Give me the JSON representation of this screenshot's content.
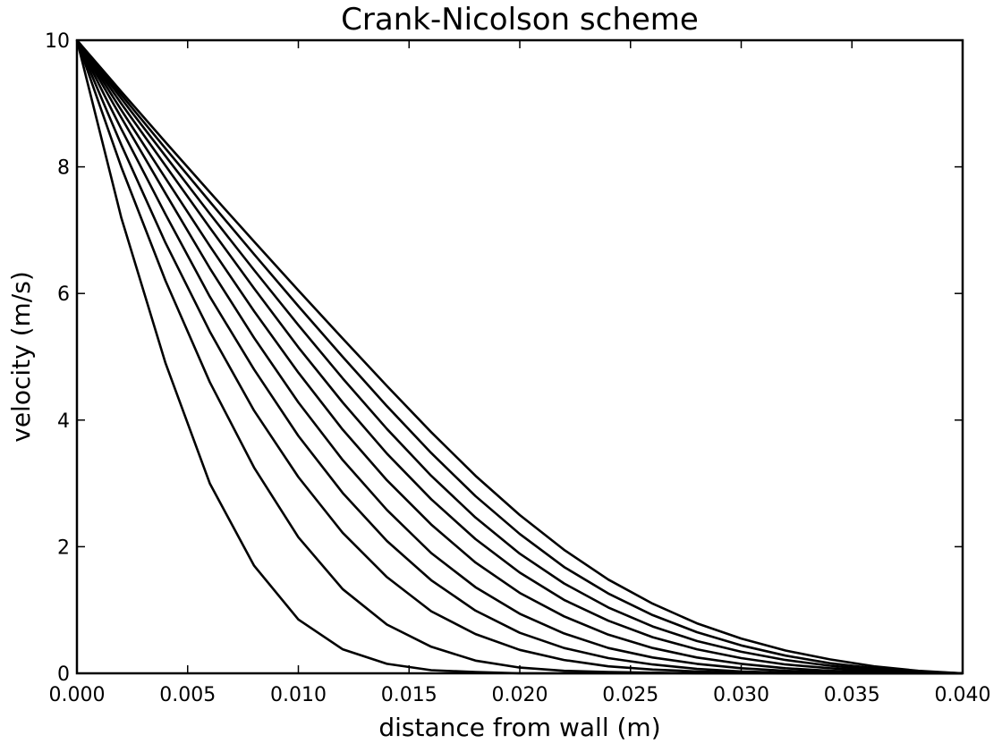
{
  "chart_data": {
    "type": "line",
    "title": "Crank-Nicolson scheme",
    "xlabel": "distance from wall (m)",
    "ylabel": "velocity (m/s)",
    "xlim": [
      0.0,
      0.04
    ],
    "ylim": [
      0,
      10
    ],
    "xticks": [
      "0.000",
      "0.005",
      "0.010",
      "0.015",
      "0.020",
      "0.025",
      "0.030",
      "0.035",
      "0.040"
    ],
    "yticks": [
      "0",
      "2",
      "4",
      "6",
      "8",
      "10"
    ],
    "grid": false,
    "x": [
      0.0,
      0.002,
      0.004,
      0.006,
      0.008,
      0.01,
      0.012,
      0.014,
      0.016,
      0.018,
      0.02,
      0.022,
      0.024,
      0.026,
      0.028,
      0.03,
      0.032,
      0.034,
      0.036,
      0.038,
      0.04
    ],
    "series": [
      {
        "values": [
          10.0,
          7.2,
          4.9,
          3.0,
          1.7,
          0.85,
          0.38,
          0.15,
          0.05,
          0.02,
          0.0,
          0.0,
          0.0,
          0.0,
          0.0,
          0.0,
          0.0,
          0.0,
          0.0,
          0.0,
          0.0
        ]
      },
      {
        "values": [
          10.0,
          8.0,
          6.2,
          4.6,
          3.25,
          2.15,
          1.33,
          0.77,
          0.42,
          0.2,
          0.09,
          0.04,
          0.02,
          0.01,
          0.0,
          0.0,
          0.0,
          0.0,
          0.0,
          0.0,
          0.0
        ]
      },
      {
        "values": [
          10.0,
          8.35,
          6.8,
          5.4,
          4.15,
          3.1,
          2.22,
          1.52,
          0.98,
          0.62,
          0.37,
          0.21,
          0.11,
          0.06,
          0.03,
          0.01,
          0.0,
          0.0,
          0.0,
          0.0,
          0.0
        ]
      },
      {
        "values": [
          10.0,
          8.6,
          7.25,
          5.95,
          4.8,
          3.75,
          2.85,
          2.09,
          1.47,
          0.99,
          0.64,
          0.4,
          0.24,
          0.14,
          0.07,
          0.03,
          0.01,
          0.0,
          0.0,
          0.0,
          0.0
        ]
      },
      {
        "values": [
          10.0,
          8.78,
          7.58,
          6.4,
          5.3,
          4.28,
          3.37,
          2.58,
          1.9,
          1.36,
          0.94,
          0.63,
          0.4,
          0.25,
          0.15,
          0.08,
          0.04,
          0.02,
          0.01,
          0.0,
          0.0
        ]
      },
      {
        "values": [
          10.0,
          8.9,
          7.82,
          6.75,
          5.72,
          4.75,
          3.85,
          3.05,
          2.35,
          1.75,
          1.27,
          0.9,
          0.61,
          0.4,
          0.25,
          0.15,
          0.08,
          0.04,
          0.02,
          0.01,
          0.0
        ]
      },
      {
        "values": [
          10.0,
          9.0,
          8.02,
          7.04,
          6.08,
          5.15,
          4.28,
          3.47,
          2.75,
          2.12,
          1.59,
          1.16,
          0.83,
          0.57,
          0.38,
          0.24,
          0.14,
          0.08,
          0.04,
          0.01,
          0.0
        ]
      },
      {
        "values": [
          10.0,
          9.08,
          8.17,
          7.26,
          6.37,
          5.5,
          4.66,
          3.86,
          3.12,
          2.46,
          1.89,
          1.42,
          1.04,
          0.74,
          0.51,
          0.34,
          0.21,
          0.12,
          0.06,
          0.02,
          0.0
        ]
      },
      {
        "values": [
          10.0,
          9.14,
          8.29,
          7.45,
          6.62,
          5.8,
          5.0,
          4.22,
          3.48,
          2.8,
          2.2,
          1.68,
          1.26,
          0.92,
          0.65,
          0.44,
          0.28,
          0.16,
          0.08,
          0.03,
          0.0
        ]
      },
      {
        "values": [
          10.0,
          9.19,
          8.39,
          7.6,
          6.82,
          6.05,
          5.29,
          4.54,
          3.81,
          3.12,
          2.5,
          1.95,
          1.48,
          1.1,
          0.79,
          0.55,
          0.36,
          0.22,
          0.11,
          0.04,
          0.0
        ]
      }
    ]
  }
}
